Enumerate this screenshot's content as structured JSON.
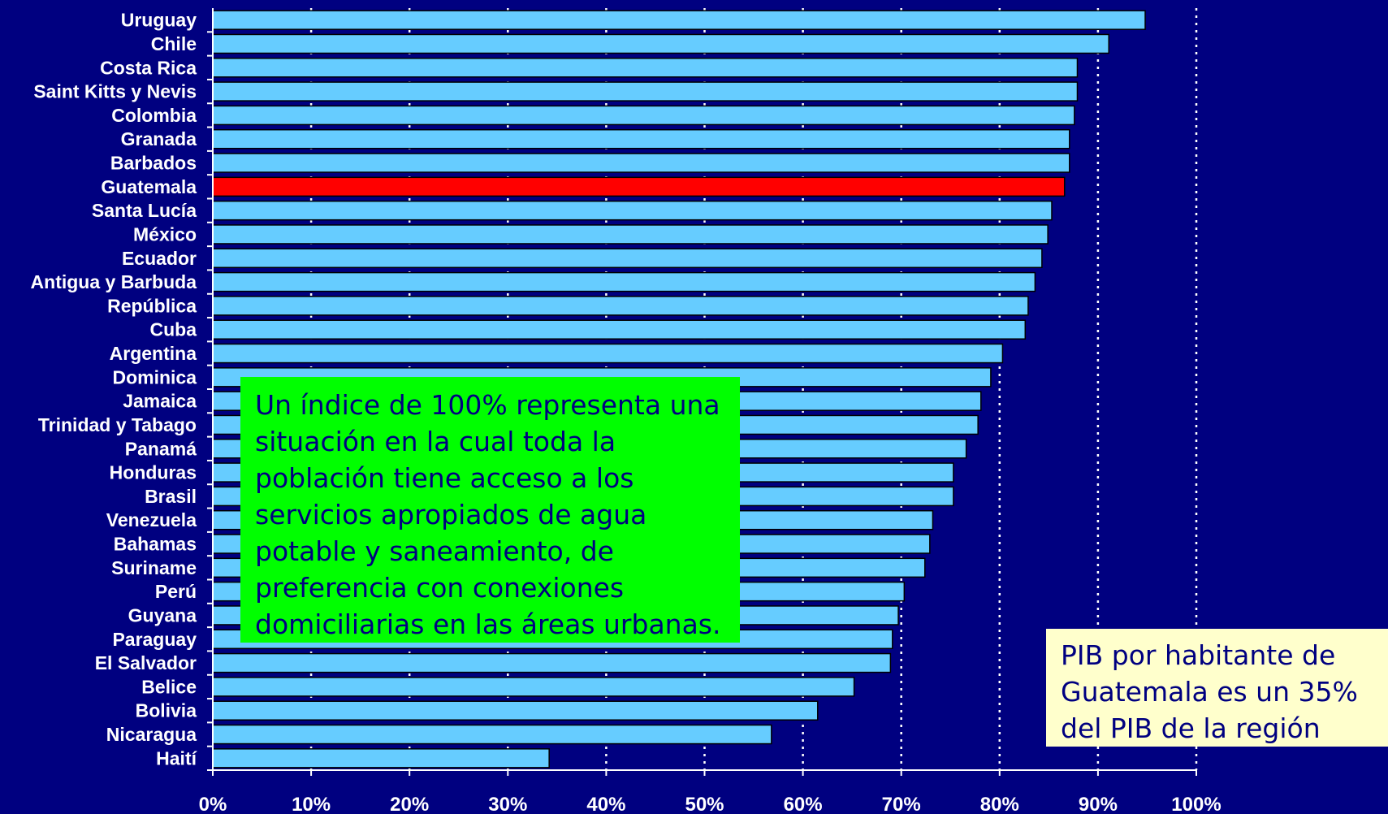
{
  "chart_data": {
    "type": "bar",
    "orientation": "horizontal",
    "categories": [
      "Uruguay",
      "Chile",
      "Costa Rica",
      "Saint Kitts y Nevis",
      "Colombia",
      "Granada",
      "Barbados",
      "Guatemala",
      "Santa Lucía",
      "México",
      "Ecuador",
      "Antigua y Barbuda",
      "República",
      "Cuba",
      "Argentina",
      "Dominica",
      "Jamaica",
      "Trinidad y Tabago",
      "Panamá",
      "Honduras",
      "Brasil",
      "Venezuela",
      "Bahamas",
      "Suriname",
      "Perú",
      "Guyana",
      "Paraguay",
      "El Salvador",
      "Belice",
      "Bolivia",
      "Nicaragua",
      "Haití"
    ],
    "values": [
      94.8,
      91.1,
      87.9,
      87.9,
      87.6,
      87.1,
      87.1,
      86.6,
      85.3,
      84.9,
      84.3,
      83.6,
      82.9,
      82.6,
      80.3,
      79.1,
      78.1,
      77.8,
      76.6,
      75.3,
      75.3,
      73.2,
      72.9,
      72.4,
      70.3,
      69.7,
      69.1,
      68.9,
      65.2,
      61.5,
      56.8,
      34.2
    ],
    "highlight": "Guatemala",
    "xlim": [
      0,
      100
    ],
    "xticks": [
      "0%",
      "10%",
      "20%",
      "30%",
      "40%",
      "50%",
      "60%",
      "70%",
      "80%",
      "90%",
      "100%"
    ],
    "grid": "vertical dotted",
    "colors": {
      "background": "#000080",
      "bar": "#66ccff",
      "highlight_bar": "#ff0000",
      "bar_outline": "#000000",
      "text": "#ffffff",
      "grid": "#ffffff"
    }
  },
  "notes": {
    "green": {
      "lines": [
        "Un índice de 100% representa una",
        "situación en la cual toda la",
        "población tiene acceso a los",
        "servicios apropiados de agua",
        "potable y saneamiento, de",
        "preferencia con conexiones",
        "domiciliarias en las áreas urbanas."
      ],
      "background": "#00ff00"
    },
    "yellow": {
      "lines": [
        "PIB por habitante de",
        "Guatemala es un 35%",
        "del PIB de la región"
      ],
      "background": "#ffffcc"
    }
  }
}
